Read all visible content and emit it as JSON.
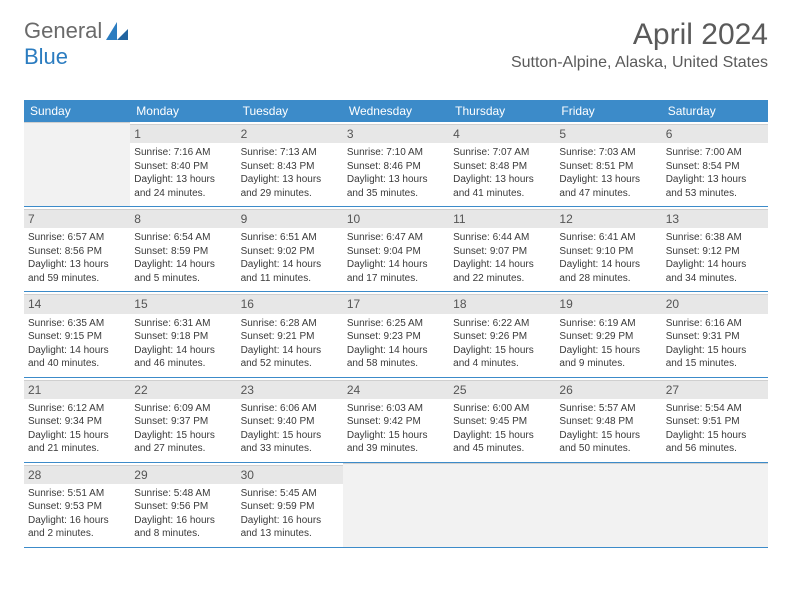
{
  "logo": {
    "part1": "General",
    "part2": "Blue"
  },
  "title": "April 2024",
  "location": "Sutton-Alpine, Alaska, United States",
  "weekdays": [
    "Sunday",
    "Monday",
    "Tuesday",
    "Wednesday",
    "Thursday",
    "Friday",
    "Saturday"
  ],
  "header_bg": "#3c8bc9",
  "day_header_bg": "#e7e7e7",
  "empty_bg": "#f2f2f2",
  "label_sunrise": "Sunrise: ",
  "label_sunset": "Sunset: ",
  "label_daylight": "Daylight: ",
  "weeks": [
    [
      null,
      {
        "n": "1",
        "sr": "7:16 AM",
        "ss": "8:40 PM",
        "dl": "13 hours and 24 minutes."
      },
      {
        "n": "2",
        "sr": "7:13 AM",
        "ss": "8:43 PM",
        "dl": "13 hours and 29 minutes."
      },
      {
        "n": "3",
        "sr": "7:10 AM",
        "ss": "8:46 PM",
        "dl": "13 hours and 35 minutes."
      },
      {
        "n": "4",
        "sr": "7:07 AM",
        "ss": "8:48 PM",
        "dl": "13 hours and 41 minutes."
      },
      {
        "n": "5",
        "sr": "7:03 AM",
        "ss": "8:51 PM",
        "dl": "13 hours and 47 minutes."
      },
      {
        "n": "6",
        "sr": "7:00 AM",
        "ss": "8:54 PM",
        "dl": "13 hours and 53 minutes."
      }
    ],
    [
      {
        "n": "7",
        "sr": "6:57 AM",
        "ss": "8:56 PM",
        "dl": "13 hours and 59 minutes."
      },
      {
        "n": "8",
        "sr": "6:54 AM",
        "ss": "8:59 PM",
        "dl": "14 hours and 5 minutes."
      },
      {
        "n": "9",
        "sr": "6:51 AM",
        "ss": "9:02 PM",
        "dl": "14 hours and 11 minutes."
      },
      {
        "n": "10",
        "sr": "6:47 AM",
        "ss": "9:04 PM",
        "dl": "14 hours and 17 minutes."
      },
      {
        "n": "11",
        "sr": "6:44 AM",
        "ss": "9:07 PM",
        "dl": "14 hours and 22 minutes."
      },
      {
        "n": "12",
        "sr": "6:41 AM",
        "ss": "9:10 PM",
        "dl": "14 hours and 28 minutes."
      },
      {
        "n": "13",
        "sr": "6:38 AM",
        "ss": "9:12 PM",
        "dl": "14 hours and 34 minutes."
      }
    ],
    [
      {
        "n": "14",
        "sr": "6:35 AM",
        "ss": "9:15 PM",
        "dl": "14 hours and 40 minutes."
      },
      {
        "n": "15",
        "sr": "6:31 AM",
        "ss": "9:18 PM",
        "dl": "14 hours and 46 minutes."
      },
      {
        "n": "16",
        "sr": "6:28 AM",
        "ss": "9:21 PM",
        "dl": "14 hours and 52 minutes."
      },
      {
        "n": "17",
        "sr": "6:25 AM",
        "ss": "9:23 PM",
        "dl": "14 hours and 58 minutes."
      },
      {
        "n": "18",
        "sr": "6:22 AM",
        "ss": "9:26 PM",
        "dl": "15 hours and 4 minutes."
      },
      {
        "n": "19",
        "sr": "6:19 AM",
        "ss": "9:29 PM",
        "dl": "15 hours and 9 minutes."
      },
      {
        "n": "20",
        "sr": "6:16 AM",
        "ss": "9:31 PM",
        "dl": "15 hours and 15 minutes."
      }
    ],
    [
      {
        "n": "21",
        "sr": "6:12 AM",
        "ss": "9:34 PM",
        "dl": "15 hours and 21 minutes."
      },
      {
        "n": "22",
        "sr": "6:09 AM",
        "ss": "9:37 PM",
        "dl": "15 hours and 27 minutes."
      },
      {
        "n": "23",
        "sr": "6:06 AM",
        "ss": "9:40 PM",
        "dl": "15 hours and 33 minutes."
      },
      {
        "n": "24",
        "sr": "6:03 AM",
        "ss": "9:42 PM",
        "dl": "15 hours and 39 minutes."
      },
      {
        "n": "25",
        "sr": "6:00 AM",
        "ss": "9:45 PM",
        "dl": "15 hours and 45 minutes."
      },
      {
        "n": "26",
        "sr": "5:57 AM",
        "ss": "9:48 PM",
        "dl": "15 hours and 50 minutes."
      },
      {
        "n": "27",
        "sr": "5:54 AM",
        "ss": "9:51 PM",
        "dl": "15 hours and 56 minutes."
      }
    ],
    [
      {
        "n": "28",
        "sr": "5:51 AM",
        "ss": "9:53 PM",
        "dl": "16 hours and 2 minutes."
      },
      {
        "n": "29",
        "sr": "5:48 AM",
        "ss": "9:56 PM",
        "dl": "16 hours and 8 minutes."
      },
      {
        "n": "30",
        "sr": "5:45 AM",
        "ss": "9:59 PM",
        "dl": "16 hours and 13 minutes."
      },
      null,
      null,
      null,
      null
    ]
  ]
}
